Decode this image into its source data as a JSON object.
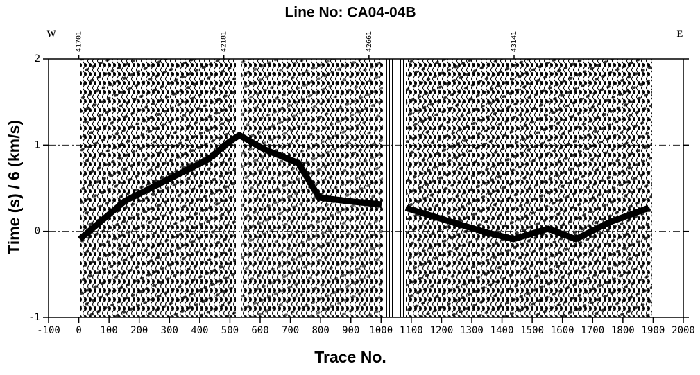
{
  "chart_data": {
    "type": "seismic",
    "title": "Line No: CA04-04B",
    "xlabel": "Trace No.",
    "ylabel": "Time (s) / 6 (km/s)",
    "annotations": [
      "W",
      "E"
    ],
    "xlim": [
      -100,
      2000
    ],
    "xticks": [
      -100,
      0,
      100,
      200,
      300,
      400,
      500,
      600,
      700,
      800,
      900,
      1000,
      1100,
      1200,
      1300,
      1400,
      1500,
      1600,
      1700,
      1800,
      1900,
      2000
    ],
    "x2ticks": [
      {
        "value": 0,
        "label": "41701"
      },
      {
        "value": 480,
        "label": "42181"
      },
      {
        "value": 960,
        "label": "42661"
      },
      {
        "value": 1440,
        "label": "43141"
      }
    ],
    "ylim": [
      -1,
      2
    ],
    "yticks": [
      -1,
      0,
      1,
      2
    ],
    "grid": true
  }
}
